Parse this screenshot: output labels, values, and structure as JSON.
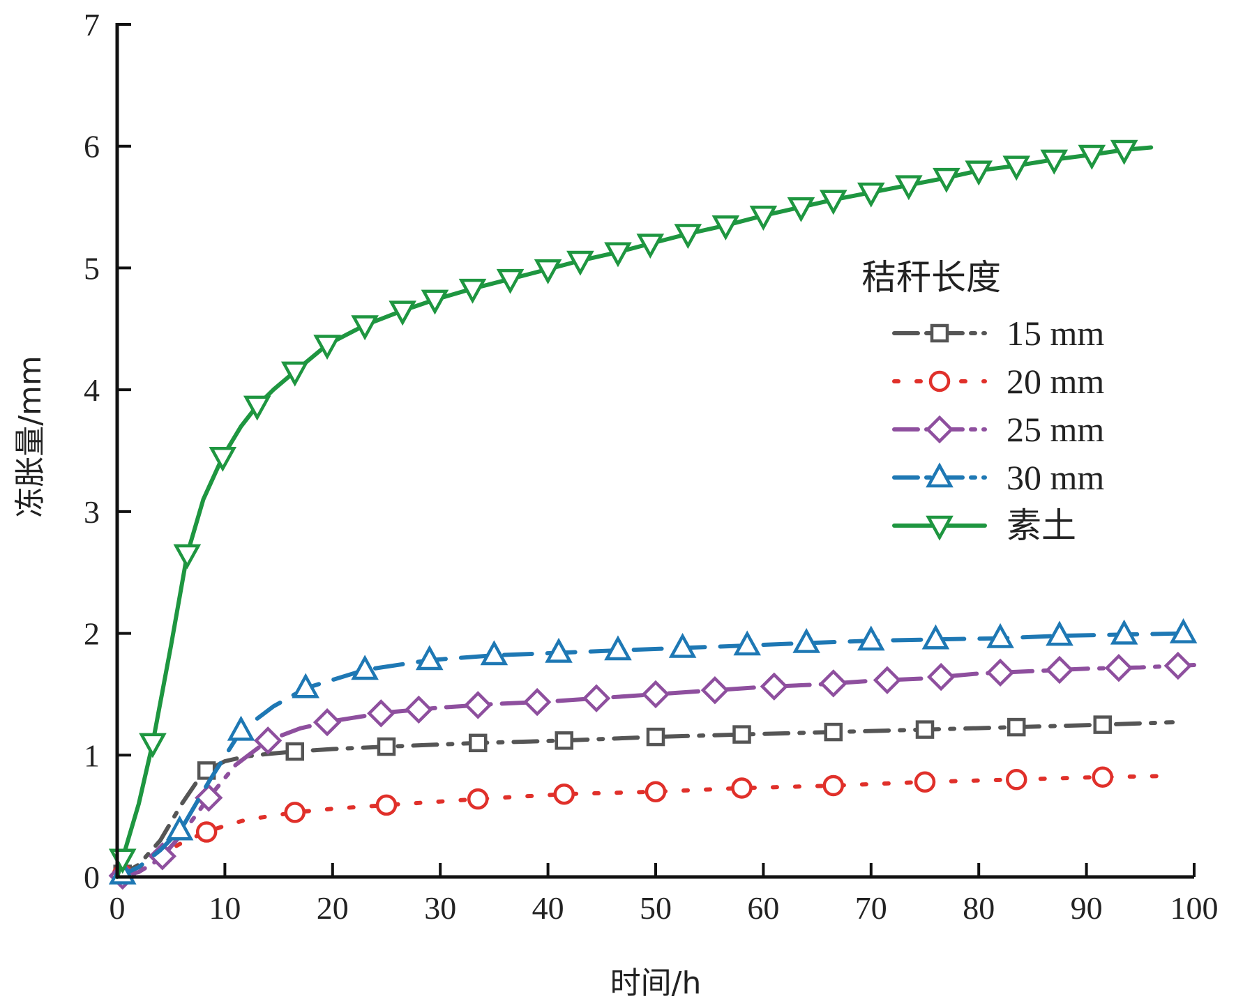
{
  "chart_data": {
    "type": "line",
    "xlabel": "时间/h",
    "ylabel": "冻胀量/mm",
    "xlim": [
      0,
      100
    ],
    "ylim": [
      0,
      7
    ],
    "xticks": [
      0,
      10,
      20,
      30,
      40,
      50,
      60,
      70,
      80,
      90,
      100
    ],
    "yticks": [
      0,
      1,
      2,
      3,
      4,
      5,
      6,
      7
    ],
    "grid": false,
    "legend": {
      "title": "秸秆长度",
      "position": "right, upper-middle"
    },
    "series": [
      {
        "name": "15 mm",
        "color": "#555555",
        "marker": "square",
        "dash": "dashdot",
        "x": [
          0,
          1,
          2,
          4,
          6,
          8,
          10,
          12,
          14,
          16.5,
          20,
          25,
          33.5,
          41.5,
          50,
          58,
          66.5,
          75,
          83.5,
          91.5,
          98
        ],
        "y": [
          0,
          0.05,
          0.1,
          0.3,
          0.6,
          0.86,
          0.95,
          0.99,
          1.01,
          1.03,
          1.05,
          1.07,
          1.1,
          1.12,
          1.15,
          1.17,
          1.19,
          1.21,
          1.23,
          1.25,
          1.27
        ],
        "marker_x": [
          0.5,
          8.3,
          16.5,
          25,
          33.5,
          41.5,
          50,
          58,
          66.5,
          75,
          83.5,
          91.5
        ]
      },
      {
        "name": "20 mm",
        "color": "#e0302a",
        "marker": "circle",
        "dash": "dotted",
        "x": [
          0,
          1,
          2,
          4,
          6,
          8,
          10,
          12,
          16.5,
          20,
          25,
          33.5,
          41.5,
          50,
          58,
          66.5,
          75,
          83.5,
          91.5,
          98
        ],
        "y": [
          0,
          0.04,
          0.08,
          0.18,
          0.28,
          0.36,
          0.42,
          0.47,
          0.53,
          0.56,
          0.59,
          0.64,
          0.68,
          0.7,
          0.73,
          0.75,
          0.78,
          0.8,
          0.82,
          0.83
        ],
        "marker_x": [
          0.5,
          8.3,
          16.5,
          25,
          33.5,
          41.5,
          50,
          58,
          66.5,
          75,
          83.5,
          91.5
        ]
      },
      {
        "name": "25 mm",
        "color": "#8e4f9e",
        "marker": "diamond",
        "dash": "dashdotlong",
        "x": [
          0,
          2,
          4,
          6,
          8.5,
          11,
          14,
          17,
          20,
          25,
          30,
          35,
          40,
          45,
          50,
          55,
          60,
          65,
          70,
          75,
          80,
          85,
          90,
          95,
          100
        ],
        "y": [
          0,
          0.04,
          0.15,
          0.35,
          0.65,
          0.92,
          1.12,
          1.22,
          1.28,
          1.35,
          1.39,
          1.42,
          1.44,
          1.47,
          1.5,
          1.53,
          1.56,
          1.58,
          1.61,
          1.63,
          1.67,
          1.69,
          1.71,
          1.72,
          1.74
        ],
        "marker_x": [
          0.5,
          4.2,
          8.5,
          14,
          19.5,
          24.5,
          28,
          33.5,
          39,
          44.5,
          50,
          55.5,
          61,
          66.5,
          71.5,
          76.5,
          82,
          87.5,
          93,
          98.5
        ]
      },
      {
        "name": "30 mm",
        "color": "#1e78b4",
        "marker": "triangle-up",
        "dash": "dashed",
        "x": [
          0,
          2,
          4,
          6,
          8.5,
          11.5,
          14.5,
          17.5,
          23,
          29,
          35,
          41,
          46.5,
          52.5,
          58.5,
          64,
          70,
          76,
          82,
          87.5,
          93.5,
          99
        ],
        "y": [
          0,
          0.08,
          0.22,
          0.4,
          0.78,
          1.2,
          1.4,
          1.55,
          1.7,
          1.78,
          1.82,
          1.84,
          1.86,
          1.88,
          1.9,
          1.92,
          1.94,
          1.95,
          1.96,
          1.98,
          1.99,
          2.0
        ],
        "marker_x": [
          0.5,
          5.8,
          11.5,
          17.5,
          23,
          29,
          35,
          41,
          46.5,
          52.5,
          58.5,
          64,
          70,
          76,
          82,
          87.5,
          93.5,
          99
        ]
      },
      {
        "name": "素土",
        "color": "#1e9640",
        "marker": "triangle-down",
        "dash": "solid",
        "x": [
          0,
          1,
          2,
          3.3,
          5,
          6.5,
          8,
          9.8,
          11.5,
          13,
          14.5,
          16.5,
          19.5,
          23,
          26.5,
          29.5,
          33,
          36.5,
          40,
          43,
          46.5,
          49.5,
          53,
          56.5,
          60,
          63.5,
          66.5,
          70,
          73.5,
          77,
          80,
          83.5,
          87,
          90.5,
          93.5,
          96
        ],
        "y": [
          0,
          0.3,
          0.6,
          1.1,
          1.9,
          2.65,
          3.1,
          3.45,
          3.7,
          3.87,
          4.0,
          4.15,
          4.37,
          4.53,
          4.65,
          4.74,
          4.83,
          4.91,
          4.99,
          5.06,
          5.13,
          5.2,
          5.28,
          5.35,
          5.43,
          5.5,
          5.56,
          5.62,
          5.68,
          5.74,
          5.8,
          5.84,
          5.89,
          5.93,
          5.97,
          5.99
        ],
        "marker_x": [
          0.5,
          3.3,
          6.5,
          9.8,
          13,
          16.5,
          19.5,
          23,
          26.5,
          29.5,
          33,
          36.5,
          40,
          43,
          46.5,
          49.5,
          53,
          56.5,
          60,
          63.5,
          66.5,
          70,
          73.5,
          77,
          80,
          83.5,
          87,
          90.5,
          93.5
        ]
      }
    ]
  }
}
